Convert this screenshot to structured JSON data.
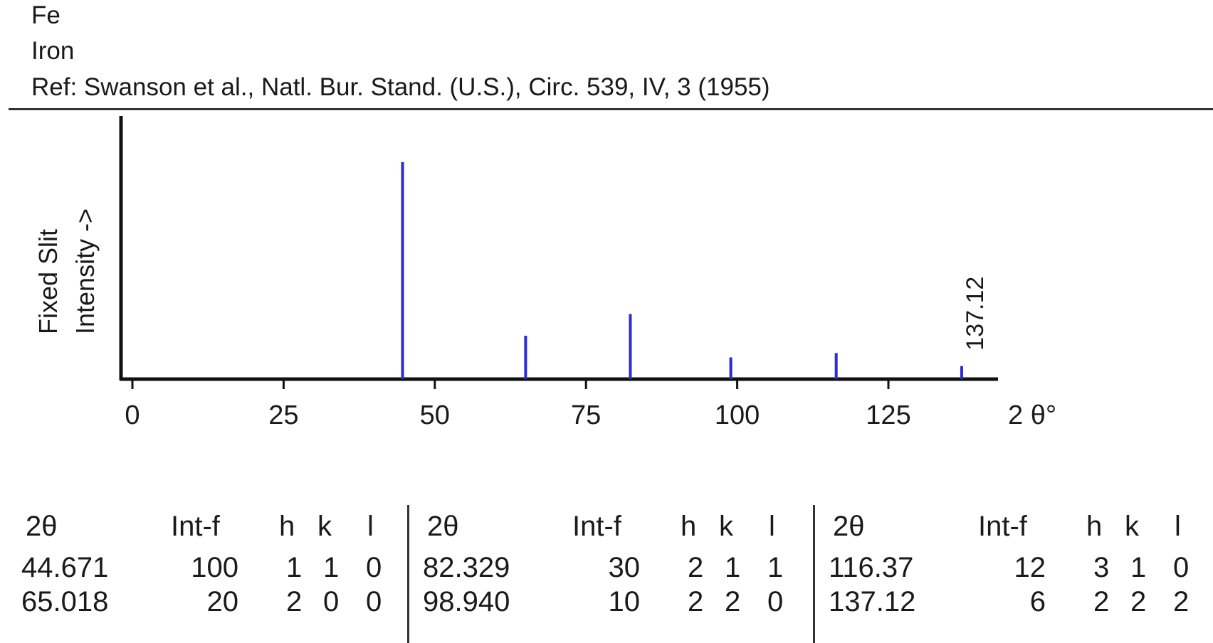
{
  "header": {
    "symbol": "Fe",
    "name": "Iron",
    "reference": "Ref: Swanson et al., Natl. Bur. Stand. (U.S.), Circ. 539, IV, 3 (1955)"
  },
  "chart_data": {
    "type": "bar",
    "ylabel_line1": "Fixed  Slit",
    "ylabel_line2": "Intensity  ->",
    "xlabel": "2 θ°",
    "xlim": [
      -10,
      145
    ],
    "ylim": [
      0,
      100
    ],
    "xticks": [
      0,
      25,
      50,
      75,
      100,
      125
    ],
    "peaks": [
      {
        "x": 44.671,
        "y": 100
      },
      {
        "x": 65.018,
        "y": 20
      },
      {
        "x": 82.329,
        "y": 30
      },
      {
        "x": 98.94,
        "y": 10
      },
      {
        "x": 116.37,
        "y": 12
      },
      {
        "x": 137.12,
        "y": 6
      }
    ],
    "peak_label": "137.12",
    "bar_color": "#2a2ad8"
  },
  "table": {
    "headers": [
      "2θ",
      "Int-f",
      "h",
      "k",
      "l"
    ],
    "groups": [
      [
        [
          "44.671",
          "100",
          "1",
          "1",
          "0"
        ],
        [
          "65.018",
          "20",
          "2",
          "0",
          "0"
        ]
      ],
      [
        [
          "82.329",
          "30",
          "2",
          "1",
          "1"
        ],
        [
          "98.940",
          "10",
          "2",
          "2",
          "0"
        ]
      ],
      [
        [
          "116.37",
          "12",
          "3",
          "1",
          "0"
        ],
        [
          "137.12",
          "6",
          "2",
          "2",
          "2"
        ]
      ]
    ]
  }
}
